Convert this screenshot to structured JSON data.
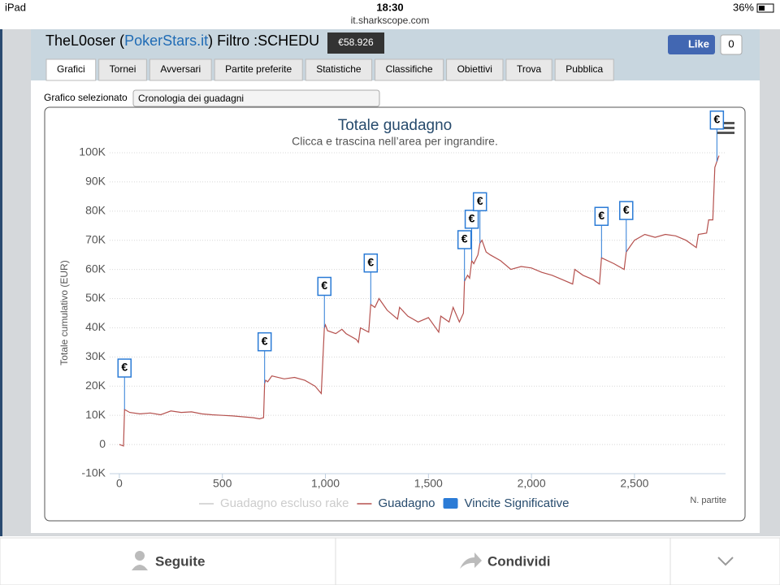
{
  "status_bar": {
    "device": "iPad",
    "time": "18:30",
    "url": "it.sharkscope.com",
    "battery": "36%"
  },
  "header": {
    "player": "TheL0oser (",
    "site": "PokerStars.it",
    "filter": ") Filtro :SCHEDU",
    "tooltip": "€58.926",
    "like": "Like",
    "like_count": "0"
  },
  "tabs": [
    "Grafici",
    "Tornei",
    "Avversari",
    "Partite preferite",
    "Statistiche",
    "Classifiche",
    "Obiettivi",
    "Trova",
    "Pubblica"
  ],
  "selector": {
    "label": "Grafico selezionato",
    "value": "Cronologia dei guadagni"
  },
  "chart_data": {
    "type": "line",
    "title": "Totale guadagno",
    "subtitle": "Clicca e trascina nell’area per ingrandire.",
    "y_label": "Totale cumulativo (EUR)",
    "x_label": "N. partite",
    "flag_label": "€",
    "grid": true,
    "xlim": [
      -47,
      2942
    ],
    "xticks": [
      0,
      500,
      {
        "value": 1000,
        "label": "1,000"
      },
      {
        "value": 1500,
        "label": "1,500"
      },
      {
        "value": 2000,
        "label": "2,000"
      },
      {
        "value": 2500,
        "label": "2,500"
      }
    ],
    "ylim": [
      -10000,
      100000
    ],
    "yticks": [
      {
        "value": -10000,
        "label": "-10K"
      },
      0,
      {
        "value": 10000,
        "label": "10K"
      },
      {
        "value": 20000,
        "label": "20K"
      },
      {
        "value": 30000,
        "label": "30K"
      },
      {
        "value": 40000,
        "label": "40K"
      },
      {
        "value": 50000,
        "label": "50K"
      },
      {
        "value": 60000,
        "label": "60K"
      },
      {
        "value": 70000,
        "label": "70K"
      },
      {
        "value": 80000,
        "label": "80K"
      },
      {
        "value": 90000,
        "label": "90K"
      },
      {
        "value": 100000,
        "label": "100K"
      }
    ],
    "series": [
      {
        "name": "Guadagno escluso rake",
        "color": "#cccccc",
        "visible": false,
        "x": [],
        "values": []
      },
      {
        "name": "Guadagno",
        "color": "#b5514e",
        "visible": true,
        "x": [
          0,
          20,
          25,
          50,
          100,
          150,
          200,
          250,
          300,
          350,
          400,
          450,
          500,
          550,
          600,
          650,
          680,
          700,
          705,
          710,
          720,
          740,
          800,
          850,
          900,
          950,
          980,
          995,
          1000,
          1010,
          1050,
          1080,
          1100,
          1150,
          1160,
          1170,
          1210,
          1220,
          1240,
          1260,
          1300,
          1350,
          1360,
          1400,
          1450,
          1500,
          1550,
          1560,
          1600,
          1620,
          1650,
          1670,
          1675,
          1690,
          1700,
          1710,
          1720,
          1740,
          1750,
          1760,
          1780,
          1800,
          1850,
          1900,
          1950,
          2000,
          2050,
          2100,
          2150,
          2200,
          2210,
          2250,
          2300,
          2330,
          2340,
          2400,
          2450,
          2460,
          2480,
          2500,
          2550,
          2600,
          2650,
          2700,
          2750,
          2800,
          2810,
          2850,
          2860,
          2880,
          2890,
          2900,
          2910
        ],
        "values": [
          0,
          -500,
          12000,
          11000,
          10500,
          10800,
          10200,
          11500,
          11000,
          11200,
          10500,
          10200,
          10000,
          9800,
          9500,
          9200,
          8800,
          9200,
          21000,
          22000,
          21500,
          23500,
          22500,
          23000,
          22000,
          20000,
          17500,
          40000,
          41000,
          39000,
          38000,
          39500,
          38000,
          36000,
          35000,
          40000,
          38500,
          48000,
          47000,
          50000,
          46000,
          43000,
          47000,
          44000,
          42000,
          43500,
          38500,
          44000,
          42000,
          47000,
          42000,
          45000,
          56000,
          58000,
          57000,
          63000,
          62000,
          65000,
          69000,
          70000,
          66000,
          65000,
          63000,
          60000,
          61000,
          60500,
          59000,
          58000,
          56500,
          55000,
          60000,
          58000,
          56500,
          55000,
          64000,
          62000,
          60000,
          66000,
          68000,
          70000,
          72000,
          71000,
          72000,
          71500,
          70000,
          67500,
          72000,
          72500,
          77000,
          77000,
          95000,
          97000,
          99000
        ]
      },
      {
        "name": "Vincite Significative",
        "color": "#2b7bd6",
        "visible": true,
        "marker": "flag",
        "x": [
          25,
          705,
          995,
          1220,
          1675,
          1710,
          1750,
          2340,
          2460,
          2900
        ],
        "values": [
          12000,
          21000,
          40000,
          48000,
          56000,
          63000,
          69000,
          64000,
          66000,
          97000
        ]
      }
    ]
  },
  "footer": {
    "follow": "Seguite",
    "share": "Condividi"
  }
}
